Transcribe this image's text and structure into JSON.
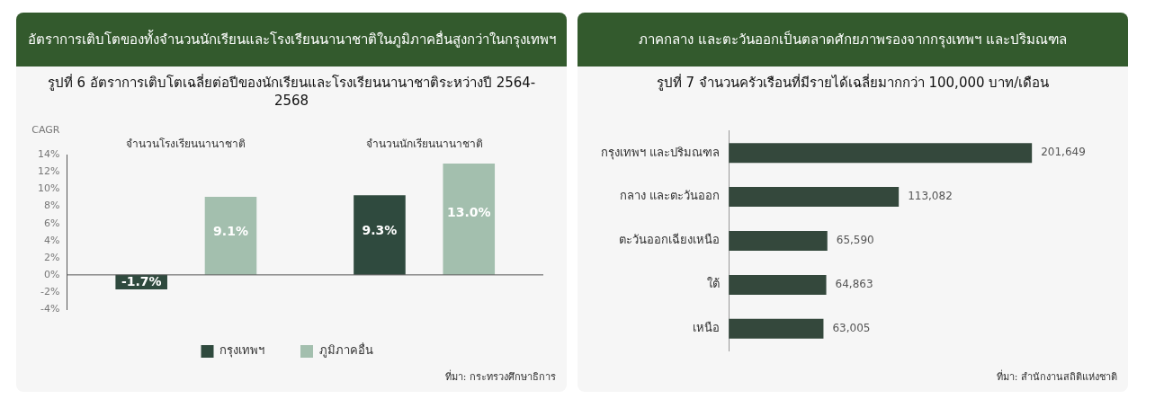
{
  "chart_data": [
    {
      "type": "bar",
      "title": "อัตราการเติบโตของทั้งจำนวนนักเรียนและโรงเรียนนานาชาติในภูมิภาคอื่นสูงกว่าในกรุงเทพฯ",
      "subtitle": "รูปที่ 6 อัตราการเติบโตเฉลี่ยต่อปีของนักเรียนและโรงเรียนนานาชาติระหว่างปี 2564-2568",
      "ylabel": "CAGR",
      "categories": [
        "จำนวนโรงเรียนนานาชาติ",
        "จำนวนนักเรียนนานาชาติ"
      ],
      "series": [
        {
          "name": "กรุงเทพฯ",
          "color": "#2f4a3e",
          "values": [
            -1.7,
            9.3
          ],
          "value_labels": [
            "-1.7%",
            "9.3%"
          ]
        },
        {
          "name": "ภูมิภาคอื่น",
          "color": "#a3bfae",
          "values": [
            9.1,
            13.0
          ],
          "value_labels": [
            "9.1%",
            "13.0%"
          ]
        }
      ],
      "ylim": [
        -4,
        14
      ],
      "yticks": [
        {
          "value": -4,
          "label": "-4%"
        },
        {
          "value": -2,
          "label": "-2%"
        },
        {
          "value": 0,
          "label": "0%"
        },
        {
          "value": 2,
          "label": "2%"
        },
        {
          "value": 4,
          "label": "4%"
        },
        {
          "value": 6,
          "label": "6%"
        },
        {
          "value": 8,
          "label": "8%"
        },
        {
          "value": 10,
          "label": "10%"
        },
        {
          "value": 12,
          "label": "12%"
        },
        {
          "value": 14,
          "label": "14%"
        }
      ],
      "grid": false,
      "legend": "bottom",
      "ref_lines": [
        {
          "axis": "y",
          "value": 0,
          "color": "#555555"
        }
      ],
      "annotations": [
        "ที่มา: กระทรวงศึกษาธิการ"
      ]
    },
    {
      "type": "bar",
      "orientation": "horizontal",
      "title": "ภาคกลาง และตะวันออกเป็นตลาดศักยภาพรองจากกรุงเทพฯ และปริมณฑล",
      "subtitle": "รูปที่ 7 จำนวนครัวเรือนที่มีรายได้เฉลี่ยมากกว่า 100,000 บาท/เดือน",
      "categories": [
        "กรุงเทพฯ และปริมณฑล",
        "กลาง และตะวันออก",
        "ตะวันออกเฉียงเหนือ",
        "ใต้",
        "เหนือ"
      ],
      "values": [
        201649,
        113082,
        65590,
        64863,
        63005
      ],
      "color": "#34483c",
      "value_labels": [
        "201,649",
        "113,082",
        "65,590",
        "64,863",
        "63,005"
      ],
      "grid": false,
      "tick_labels": "y",
      "annotations": [
        "ที่มา: สำนักงานสถิติแห่งชาติ"
      ]
    }
  ]
}
